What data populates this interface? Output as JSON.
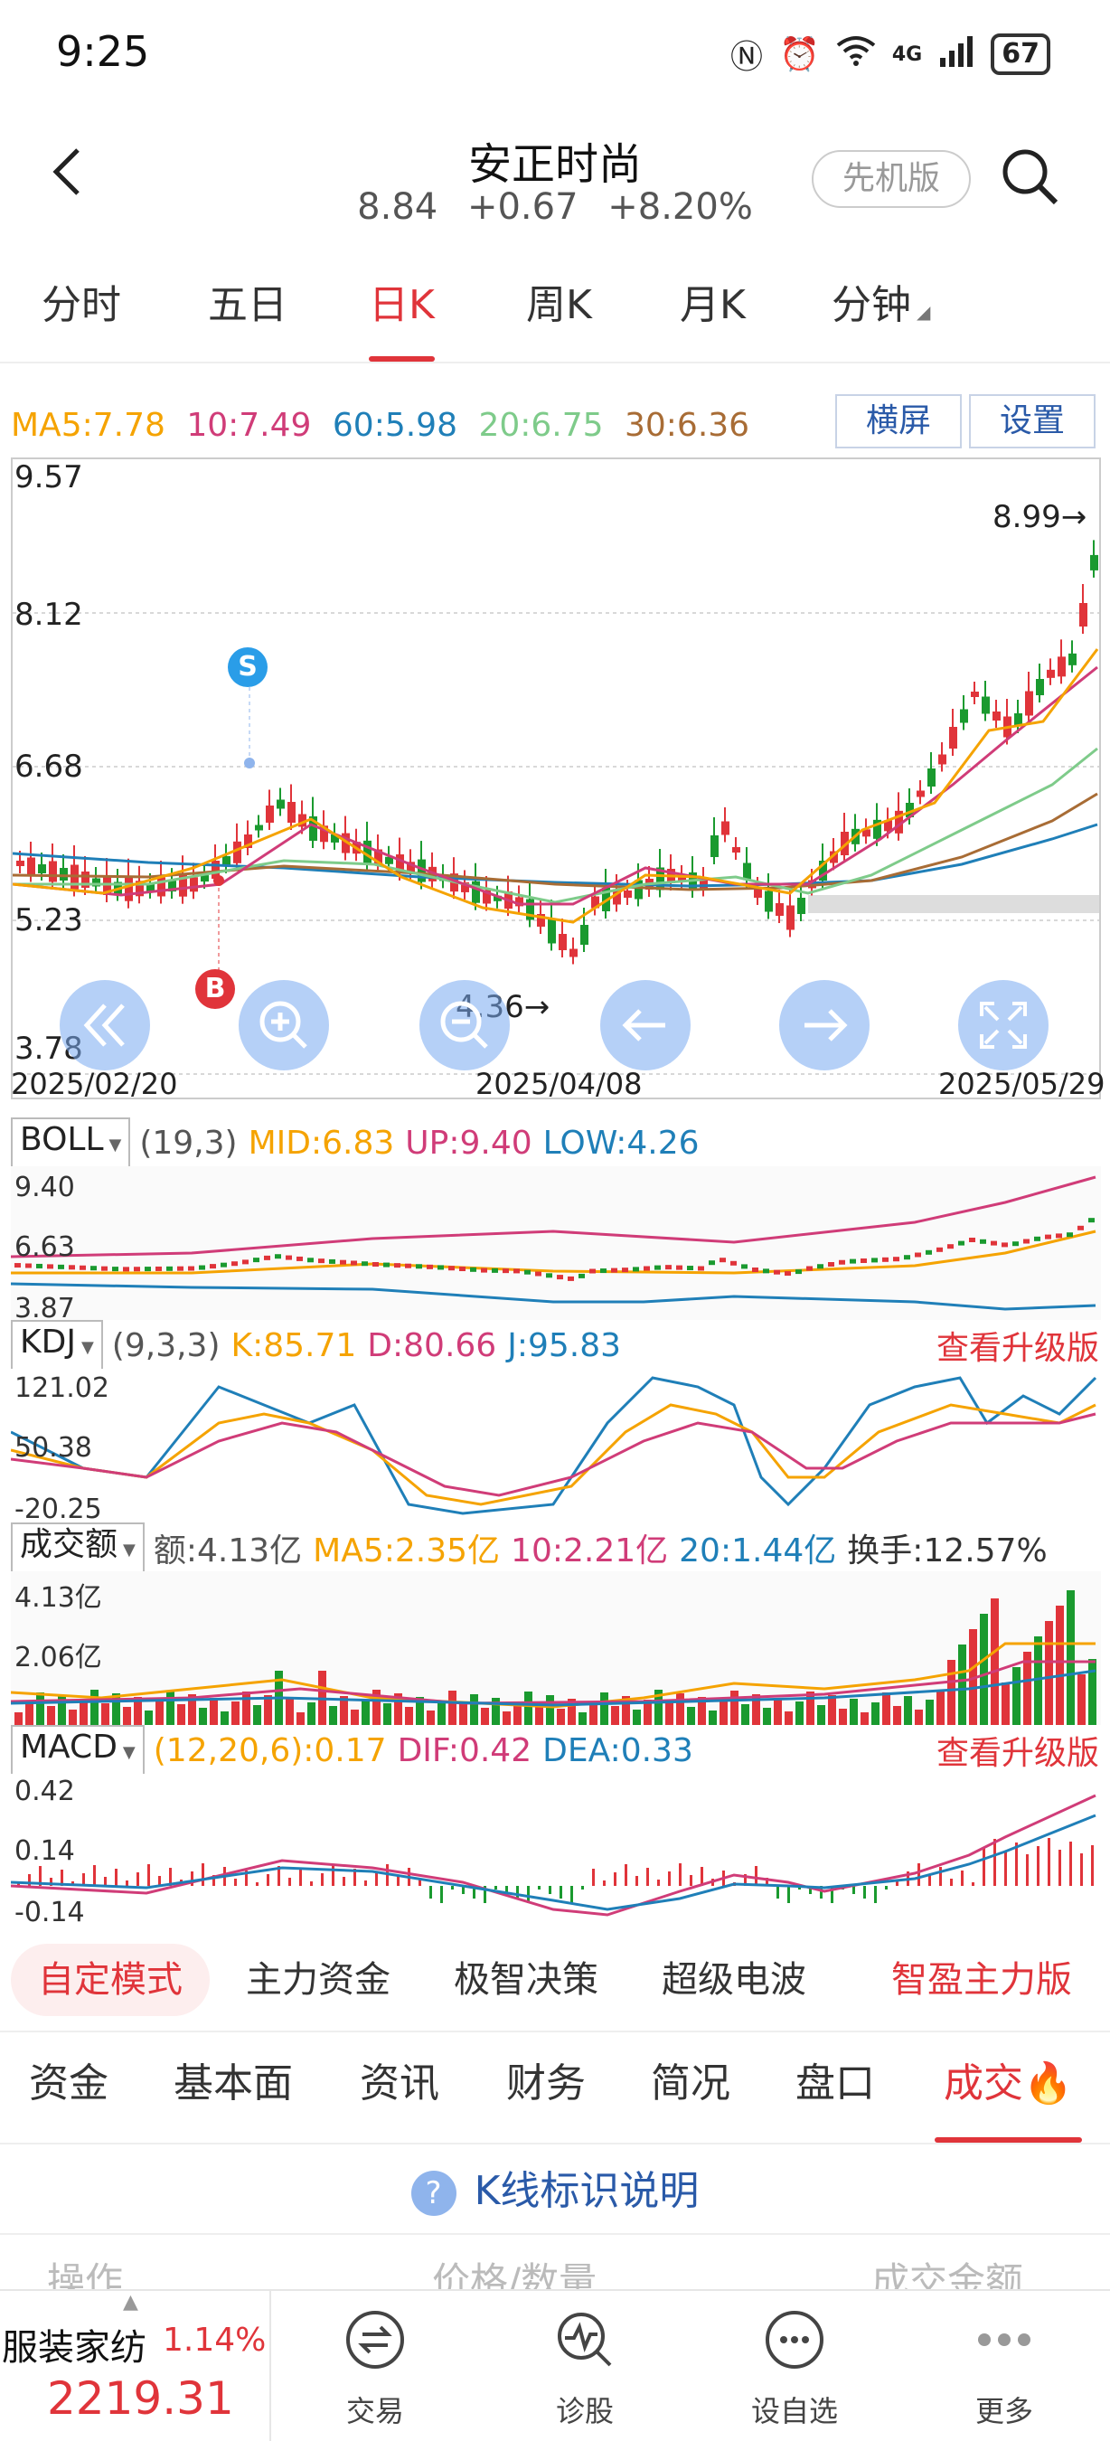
{
  "status": {
    "time": "9:25",
    "battery": "67",
    "network": "4G"
  },
  "header": {
    "title": "安正时尚",
    "price": "8.84",
    "change": "+0.67",
    "change_pct": "+8.20%",
    "mode_pill": "先机版"
  },
  "tabs": [
    {
      "label": "分时"
    },
    {
      "label": "五日"
    },
    {
      "label": "日K"
    },
    {
      "label": "周K"
    },
    {
      "label": "月K"
    },
    {
      "label": "分钟"
    }
  ],
  "ma": {
    "ma5": "MA5:7.78",
    "ma10": "10:7.49",
    "ma60": "60:5.98",
    "ma20": "20:6.75",
    "ma30": "30:6.36"
  },
  "chart_buttons": {
    "landscape": "横屏",
    "settings": "设置"
  },
  "colors": {
    "up": "#e0343a",
    "down": "#1a9a2f",
    "ma5": "#f5a300",
    "ma10": "#d03c78",
    "ma20": "#7ecb8a",
    "ma30": "#a86c35",
    "ma60": "#1f7fb8",
    "accent": "#2a5aa8"
  },
  "kchart": {
    "y_ticks": [
      "9.57",
      "8.12",
      "6.68",
      "5.23",
      "3.78"
    ],
    "dates": [
      "2025/02/20",
      "2025/04/08",
      "2025/05/29"
    ],
    "high_label": "8.99→",
    "low_label": "4.36→",
    "sell_marker": "S",
    "buy_marker": "B"
  },
  "boll": {
    "name": "BOLL",
    "params": "(19,3)",
    "mid": "MID:6.83",
    "up": "UP:9.40",
    "low": "LOW:4.26",
    "ticks": [
      "9.40",
      "6.63",
      "3.87"
    ]
  },
  "kdj": {
    "name": "KDJ",
    "params": "(9,3,3)",
    "k": "K:85.71",
    "d": "D:80.66",
    "j": "J:95.83",
    "ticks": [
      "121.02",
      "50.38",
      "-20.25"
    ],
    "upgrade": "查看升级版"
  },
  "volume": {
    "name": "成交额",
    "amount": "额:4.13亿",
    "ma5": "MA5:2.35亿",
    "ma10": "10:2.21亿",
    "ma20": "20:1.44亿",
    "turnover": "换手:12.57%",
    "ticks": [
      "4.13亿",
      "2.06亿"
    ]
  },
  "macd": {
    "name": "MACD",
    "params": "(12,20,6):0.17",
    "dif": "DIF:0.42",
    "dea": "DEA:0.33",
    "ticks": [
      "0.42",
      "0.14",
      "-0.14"
    ],
    "upgrade": "查看升级版"
  },
  "modes": [
    {
      "label": "自定模式"
    },
    {
      "label": "主力资金"
    },
    {
      "label": "极智决策"
    },
    {
      "label": "超级电波"
    },
    {
      "label": "智盈主力版"
    }
  ],
  "bottom_tabs": [
    {
      "label": "资金"
    },
    {
      "label": "基本面"
    },
    {
      "label": "资讯"
    },
    {
      "label": "财务"
    },
    {
      "label": "简况"
    },
    {
      "label": "盘口"
    },
    {
      "label": "成交"
    }
  ],
  "legend_explain": "K线标识说明",
  "peek_cols": [
    "操作",
    "价格/数量",
    "成交金额"
  ],
  "index": {
    "name": "服装家纺",
    "pct": "1.14%",
    "value": "2219.31"
  },
  "nav": [
    {
      "label": "交易"
    },
    {
      "label": "诊股"
    },
    {
      "label": "设自选"
    },
    {
      "label": "更多"
    }
  ]
}
